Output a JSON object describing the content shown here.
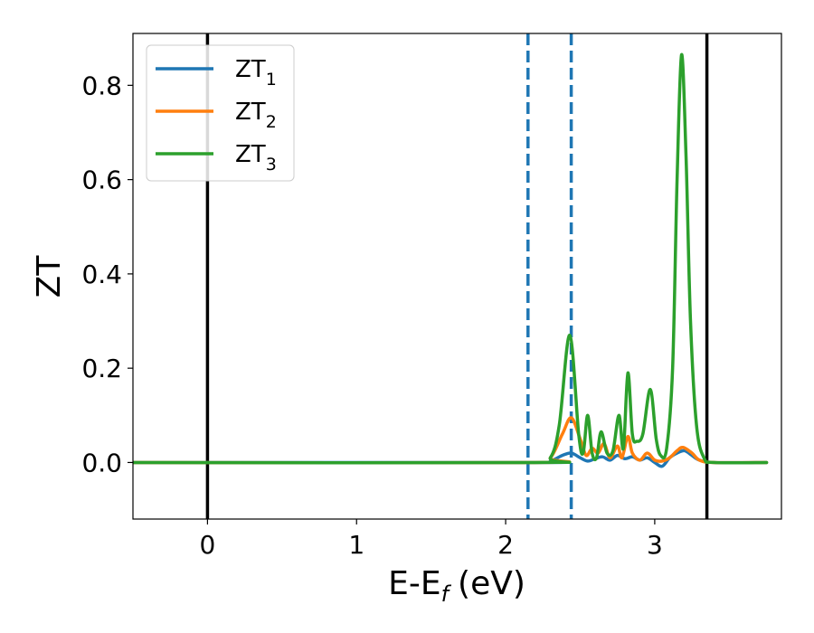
{
  "chart_data": {
    "type": "line",
    "xlabel": "E-E",
    "xlabel_sub": "f",
    "xlabel_unit": "(eV)",
    "ylabel": "ZT",
    "xlim": [
      -0.5,
      3.85
    ],
    "ylim": [
      -0.12,
      0.91
    ],
    "xticks": [
      0,
      1,
      2,
      3
    ],
    "yticks": [
      0.0,
      0.2,
      0.4,
      0.6,
      0.8
    ],
    "ytick_labels": [
      "0.0",
      "0.2",
      "0.4",
      "0.6",
      "0.8"
    ],
    "grid": false,
    "legend_position": "top-left",
    "vertical_lines": [
      {
        "x": 0.0,
        "style": "solid",
        "color": "#000000"
      },
      {
        "x": 3.35,
        "style": "solid",
        "color": "#000000"
      },
      {
        "x": 2.15,
        "style": "dashed",
        "color": "#1f77b4"
      },
      {
        "x": 2.44,
        "style": "dashed",
        "color": "#1f77b4"
      }
    ],
    "series": [
      {
        "name": "ZT",
        "name_sub": "1",
        "color": "#1f77b4",
        "x": [
          -0.5,
          2.2,
          2.3,
          2.38,
          2.44,
          2.5,
          2.55,
          2.6,
          2.65,
          2.7,
          2.75,
          2.8,
          2.85,
          2.9,
          2.95,
          3.0,
          3.05,
          3.1,
          3.15,
          3.2,
          3.25,
          3.3,
          3.4,
          3.75
        ],
        "y": [
          0,
          0,
          0.003,
          0.015,
          0.02,
          0.01,
          0.003,
          0.008,
          0.012,
          0.005,
          0.015,
          0.008,
          0.012,
          0.005,
          0.01,
          0.0,
          -0.008,
          0.01,
          0.02,
          0.025,
          0.015,
          0.005,
          0.0,
          0.0
        ]
      },
      {
        "name": "ZT",
        "name_sub": "2",
        "color": "#ff7f0e",
        "x": [
          -0.5,
          2.2,
          2.3,
          2.38,
          2.44,
          2.5,
          2.54,
          2.58,
          2.62,
          2.66,
          2.7,
          2.75,
          2.78,
          2.82,
          2.85,
          2.9,
          2.95,
          3.0,
          3.05,
          3.1,
          3.15,
          3.19,
          3.25,
          3.3,
          3.4,
          3.75
        ],
        "y": [
          0,
          0,
          0.01,
          0.06,
          0.095,
          0.05,
          0.015,
          0.03,
          0.02,
          0.04,
          0.01,
          0.035,
          0.01,
          0.055,
          0.02,
          0.005,
          0.02,
          0.005,
          0.003,
          0.01,
          0.025,
          0.032,
          0.02,
          0.005,
          0.0,
          0.0
        ]
      },
      {
        "name": "ZT",
        "name_sub": "3",
        "color": "#2ca02c",
        "x": [
          -0.5,
          2.2,
          2.3,
          2.36,
          2.43,
          2.49,
          2.52,
          2.55,
          2.58,
          2.61,
          2.64,
          2.68,
          2.72,
          2.76,
          2.79,
          2.82,
          2.85,
          2.88,
          2.92,
          2.97,
          3.01,
          3.04,
          3.08,
          3.12,
          3.15,
          3.18,
          3.21,
          3.24,
          3.28,
          3.33,
          3.4,
          3.75
        ],
        "y": [
          0,
          0,
          0.01,
          0.08,
          0.27,
          0.06,
          0.02,
          0.1,
          0.02,
          0.01,
          0.065,
          0.02,
          0.025,
          0.1,
          0.03,
          0.19,
          0.06,
          0.045,
          0.06,
          0.155,
          0.05,
          0.015,
          0.03,
          0.2,
          0.6,
          0.865,
          0.65,
          0.3,
          0.08,
          0.01,
          0.0,
          0.0
        ]
      }
    ]
  }
}
